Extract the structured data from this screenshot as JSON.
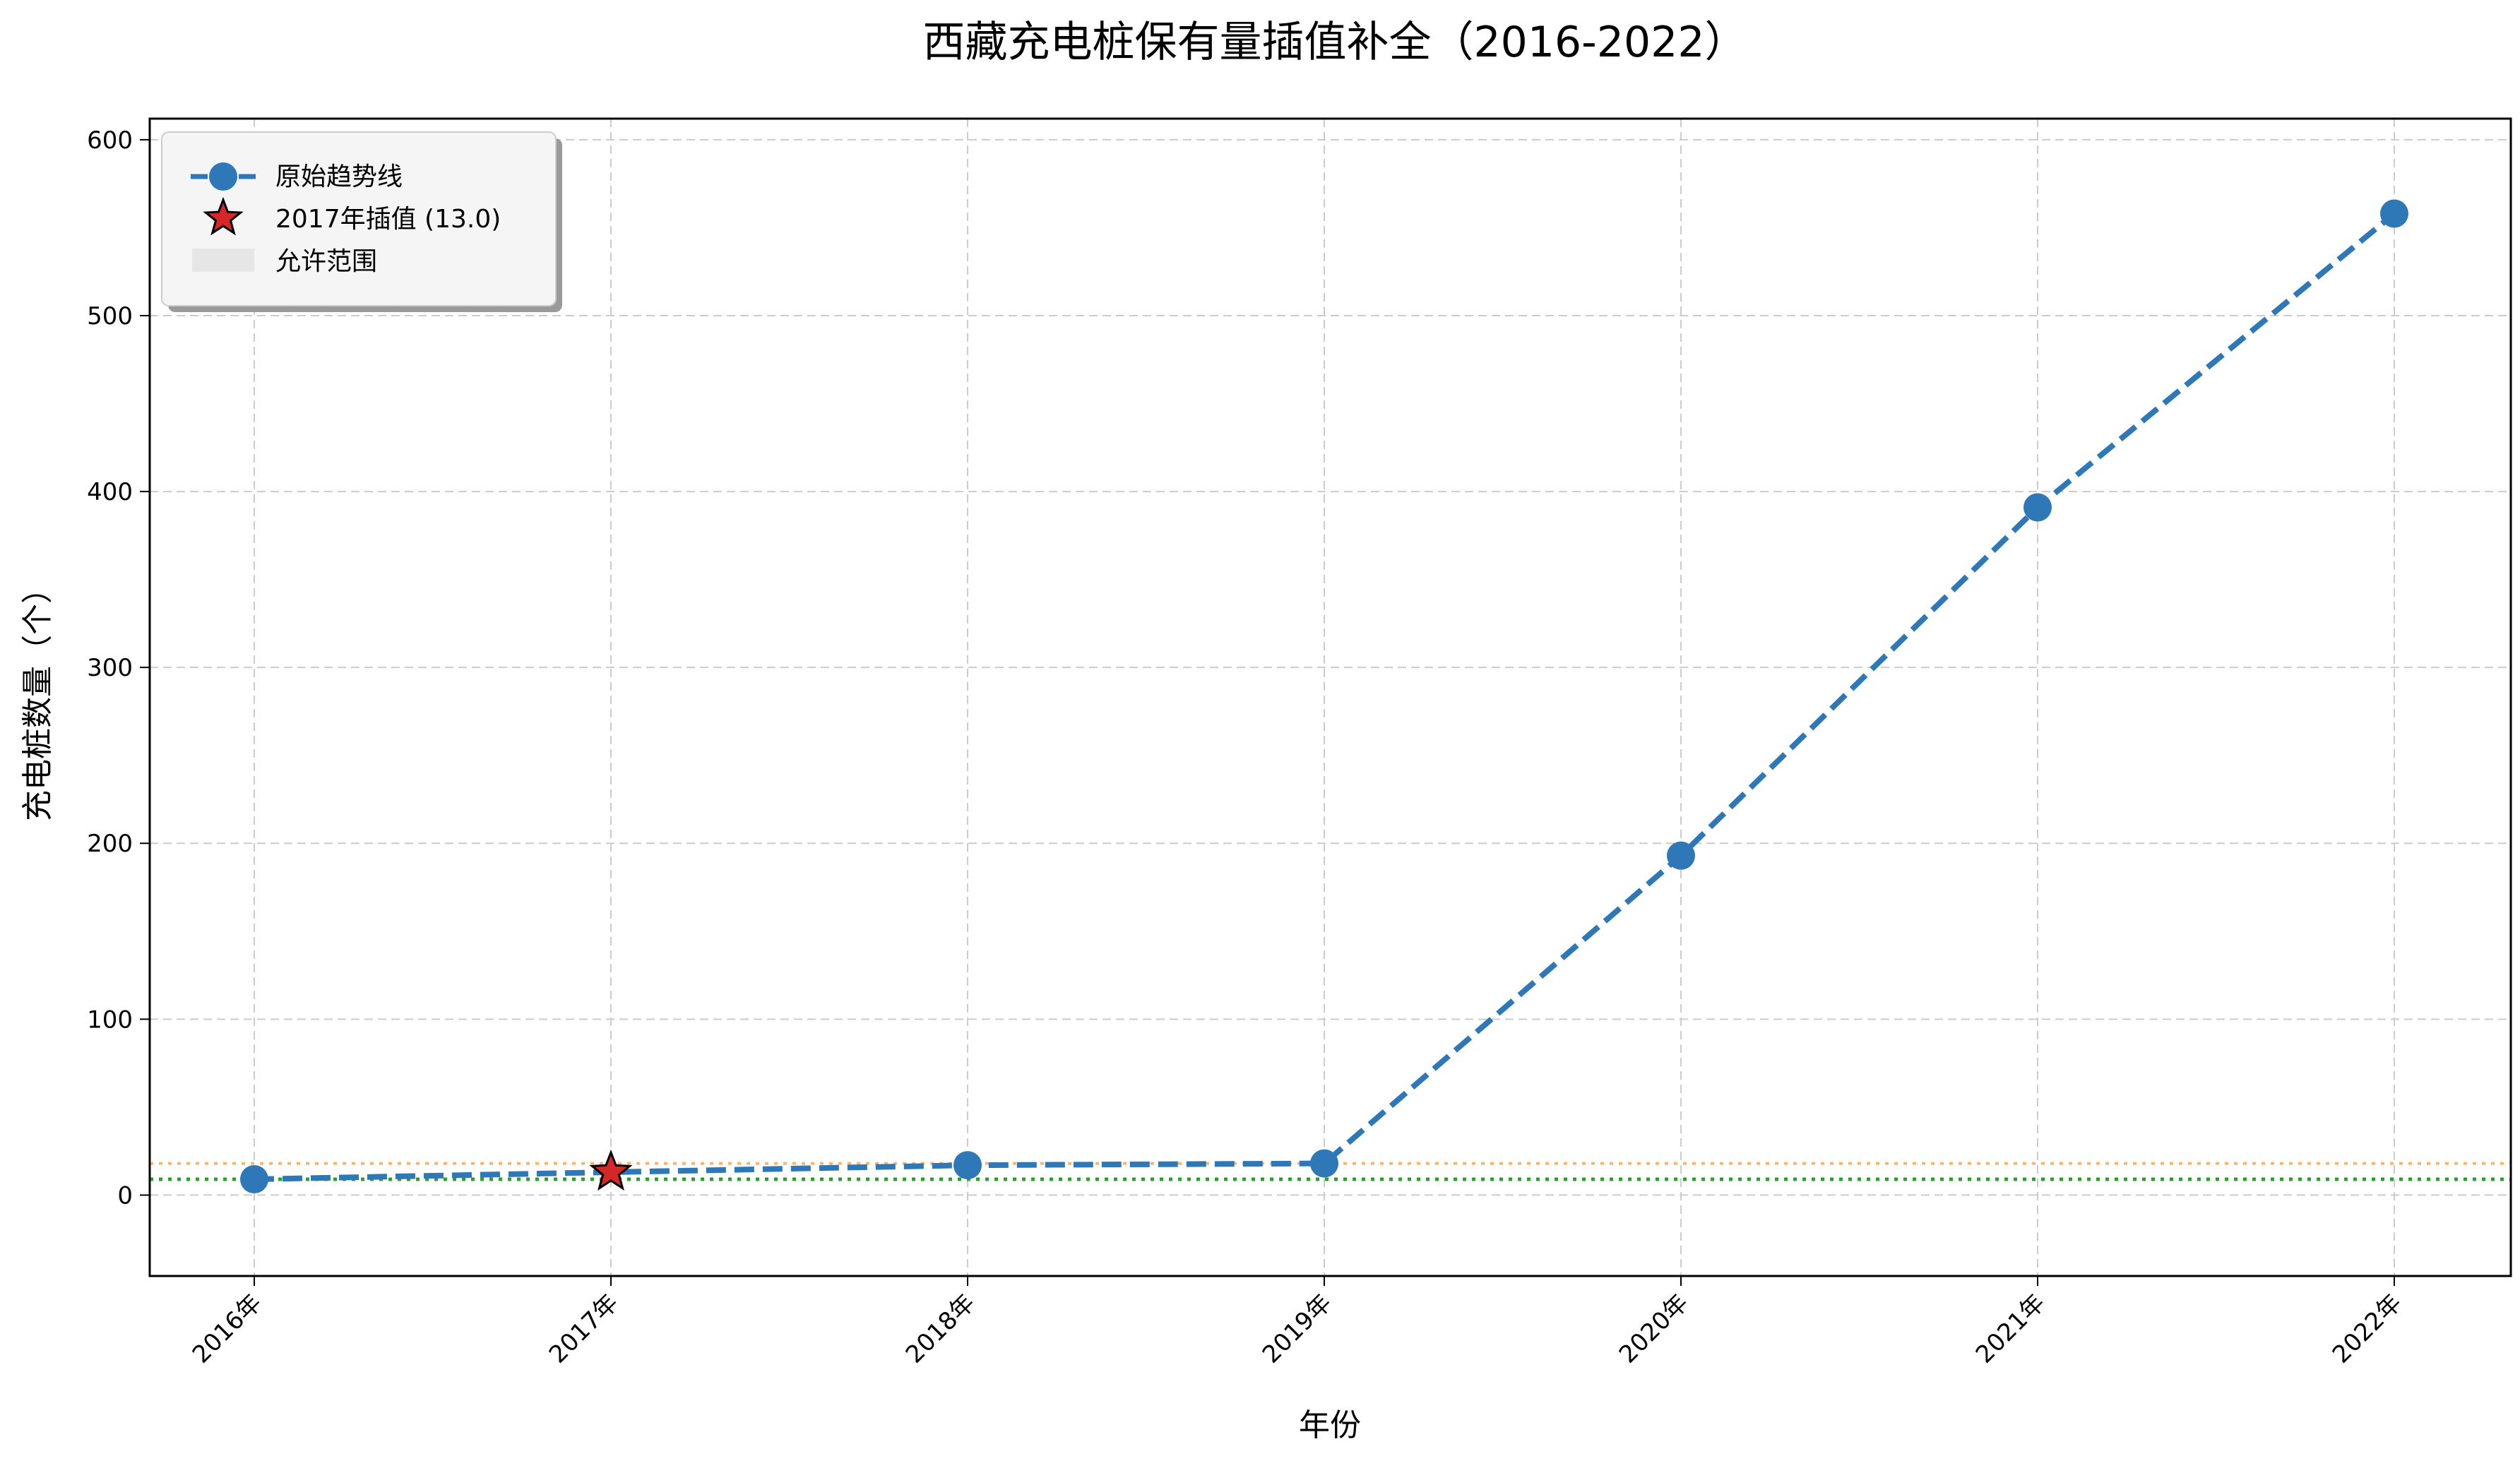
{
  "chart_data": {
    "type": "line",
    "title": "西藏充电桩保有量插值补全（2016-2022）",
    "xlabel": "年份",
    "ylabel": "充电桩数量（个）",
    "categories": [
      "2016年",
      "2017年",
      "2018年",
      "2019年",
      "2020年",
      "2021年",
      "2022年"
    ],
    "ylim": [
      -46,
      612
    ],
    "yticks": [
      0,
      100,
      200,
      300,
      400,
      500,
      600
    ],
    "grid": true,
    "legend_placement": "top-left",
    "series": [
      {
        "name": "原始趋势线",
        "values": [
          9,
          13,
          17,
          18,
          193,
          391,
          558
        ],
        "color": "#2e78b7",
        "style": "dashed",
        "marker": "circle"
      }
    ],
    "interpolated_point": {
      "name": "2017年插值 (13.0)",
      "category": "2017年",
      "value": 13.0,
      "color": "#d62728",
      "marker": "star"
    },
    "allowed_range": {
      "name": "允许范围",
      "lower": 9,
      "upper": 18,
      "lower_color": "#2ca02c",
      "upper_color": "#ffb26b",
      "fill_color": "#e6e6e6"
    }
  }
}
